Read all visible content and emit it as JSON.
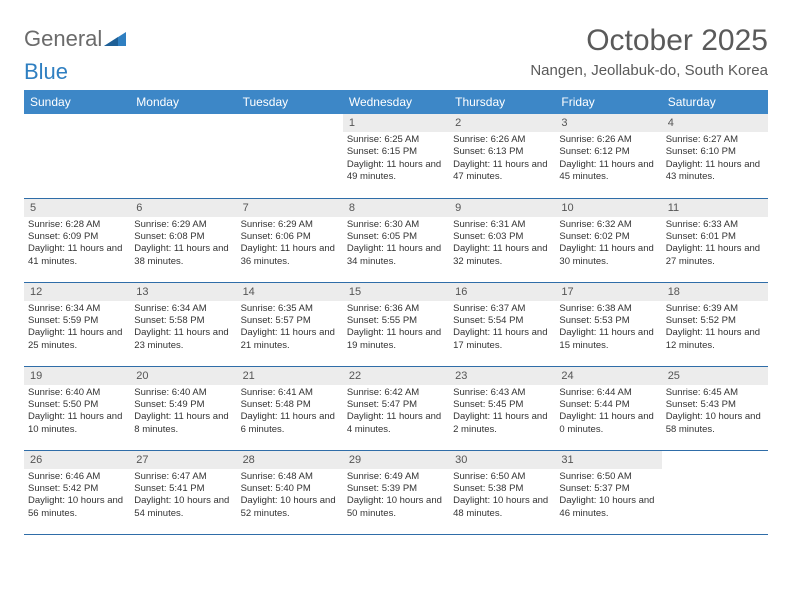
{
  "brand": {
    "part1": "General",
    "part2": "Blue"
  },
  "title": "October 2025",
  "location": "Nangen, Jeollabuk-do, South Korea",
  "colors": {
    "header_bg": "#3d87c7",
    "header_text": "#ffffff",
    "daynum_bg": "#ececec",
    "border": "#2f6da8",
    "brand_gray": "#6b6b6b",
    "brand_blue": "#2f7fc1"
  },
  "weekdays": [
    "Sunday",
    "Monday",
    "Tuesday",
    "Wednesday",
    "Thursday",
    "Friday",
    "Saturday"
  ],
  "weeks": [
    [
      null,
      null,
      null,
      {
        "n": "1",
        "sr": "6:25 AM",
        "ss": "6:15 PM",
        "dl": "11 hours and 49 minutes."
      },
      {
        "n": "2",
        "sr": "6:26 AM",
        "ss": "6:13 PM",
        "dl": "11 hours and 47 minutes."
      },
      {
        "n": "3",
        "sr": "6:26 AM",
        "ss": "6:12 PM",
        "dl": "11 hours and 45 minutes."
      },
      {
        "n": "4",
        "sr": "6:27 AM",
        "ss": "6:10 PM",
        "dl": "11 hours and 43 minutes."
      }
    ],
    [
      {
        "n": "5",
        "sr": "6:28 AM",
        "ss": "6:09 PM",
        "dl": "11 hours and 41 minutes."
      },
      {
        "n": "6",
        "sr": "6:29 AM",
        "ss": "6:08 PM",
        "dl": "11 hours and 38 minutes."
      },
      {
        "n": "7",
        "sr": "6:29 AM",
        "ss": "6:06 PM",
        "dl": "11 hours and 36 minutes."
      },
      {
        "n": "8",
        "sr": "6:30 AM",
        "ss": "6:05 PM",
        "dl": "11 hours and 34 minutes."
      },
      {
        "n": "9",
        "sr": "6:31 AM",
        "ss": "6:03 PM",
        "dl": "11 hours and 32 minutes."
      },
      {
        "n": "10",
        "sr": "6:32 AM",
        "ss": "6:02 PM",
        "dl": "11 hours and 30 minutes."
      },
      {
        "n": "11",
        "sr": "6:33 AM",
        "ss": "6:01 PM",
        "dl": "11 hours and 27 minutes."
      }
    ],
    [
      {
        "n": "12",
        "sr": "6:34 AM",
        "ss": "5:59 PM",
        "dl": "11 hours and 25 minutes."
      },
      {
        "n": "13",
        "sr": "6:34 AM",
        "ss": "5:58 PM",
        "dl": "11 hours and 23 minutes."
      },
      {
        "n": "14",
        "sr": "6:35 AM",
        "ss": "5:57 PM",
        "dl": "11 hours and 21 minutes."
      },
      {
        "n": "15",
        "sr": "6:36 AM",
        "ss": "5:55 PM",
        "dl": "11 hours and 19 minutes."
      },
      {
        "n": "16",
        "sr": "6:37 AM",
        "ss": "5:54 PM",
        "dl": "11 hours and 17 minutes."
      },
      {
        "n": "17",
        "sr": "6:38 AM",
        "ss": "5:53 PM",
        "dl": "11 hours and 15 minutes."
      },
      {
        "n": "18",
        "sr": "6:39 AM",
        "ss": "5:52 PM",
        "dl": "11 hours and 12 minutes."
      }
    ],
    [
      {
        "n": "19",
        "sr": "6:40 AM",
        "ss": "5:50 PM",
        "dl": "11 hours and 10 minutes."
      },
      {
        "n": "20",
        "sr": "6:40 AM",
        "ss": "5:49 PM",
        "dl": "11 hours and 8 minutes."
      },
      {
        "n": "21",
        "sr": "6:41 AM",
        "ss": "5:48 PM",
        "dl": "11 hours and 6 minutes."
      },
      {
        "n": "22",
        "sr": "6:42 AM",
        "ss": "5:47 PM",
        "dl": "11 hours and 4 minutes."
      },
      {
        "n": "23",
        "sr": "6:43 AM",
        "ss": "5:45 PM",
        "dl": "11 hours and 2 minutes."
      },
      {
        "n": "24",
        "sr": "6:44 AM",
        "ss": "5:44 PM",
        "dl": "11 hours and 0 minutes."
      },
      {
        "n": "25",
        "sr": "6:45 AM",
        "ss": "5:43 PM",
        "dl": "10 hours and 58 minutes."
      }
    ],
    [
      {
        "n": "26",
        "sr": "6:46 AM",
        "ss": "5:42 PM",
        "dl": "10 hours and 56 minutes."
      },
      {
        "n": "27",
        "sr": "6:47 AM",
        "ss": "5:41 PM",
        "dl": "10 hours and 54 minutes."
      },
      {
        "n": "28",
        "sr": "6:48 AM",
        "ss": "5:40 PM",
        "dl": "10 hours and 52 minutes."
      },
      {
        "n": "29",
        "sr": "6:49 AM",
        "ss": "5:39 PM",
        "dl": "10 hours and 50 minutes."
      },
      {
        "n": "30",
        "sr": "6:50 AM",
        "ss": "5:38 PM",
        "dl": "10 hours and 48 minutes."
      },
      {
        "n": "31",
        "sr": "6:50 AM",
        "ss": "5:37 PM",
        "dl": "10 hours and 46 minutes."
      },
      null
    ]
  ],
  "labels": {
    "sunrise": "Sunrise:",
    "sunset": "Sunset:",
    "daylight": "Daylight:"
  }
}
